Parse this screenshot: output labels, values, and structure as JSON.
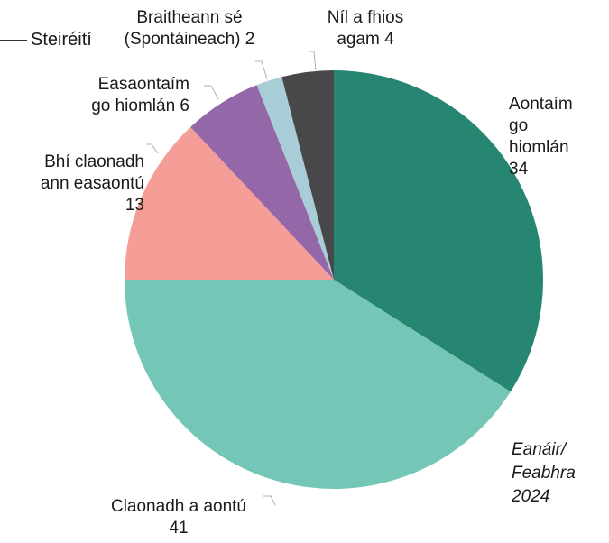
{
  "legend_text": "Steiréití",
  "chart_data": {
    "type": "pie",
    "period_label": [
      "Eanáir/",
      "Feabhra",
      "2024"
    ],
    "slices": [
      {
        "label": "Aontaím go hiomlán",
        "value": 34,
        "color": "#278672"
      },
      {
        "label": "Claonadh a aontú",
        "value": 41,
        "color": "#74c6b6"
      },
      {
        "label": "Bhí claonadh ann easaontú",
        "value": 13,
        "color": "#f59d97"
      },
      {
        "label": "Easaontaím go hiomlán",
        "value": 6,
        "color": "#9467a8"
      },
      {
        "label": "Braitheann sé (Spontáineach)",
        "value": 2,
        "color": "#a9cdd6"
      },
      {
        "label": "Níl a fhios agam",
        "value": 4,
        "color": "#48484a"
      }
    ]
  },
  "labels": {
    "s0": [
      "Aontaím",
      "go",
      "hiomlán",
      "34"
    ],
    "s1": [
      "Claonadh a aontú",
      "41"
    ],
    "s2": [
      "Bhí claonadh",
      "ann easaontú",
      "13"
    ],
    "s3": [
      "Easaontaím",
      "go hiomlán 6"
    ],
    "s4": [
      "Braitheann sé",
      "(Spontáineach) 2"
    ],
    "s5": [
      "Níl a fhios",
      "agam 4"
    ]
  }
}
